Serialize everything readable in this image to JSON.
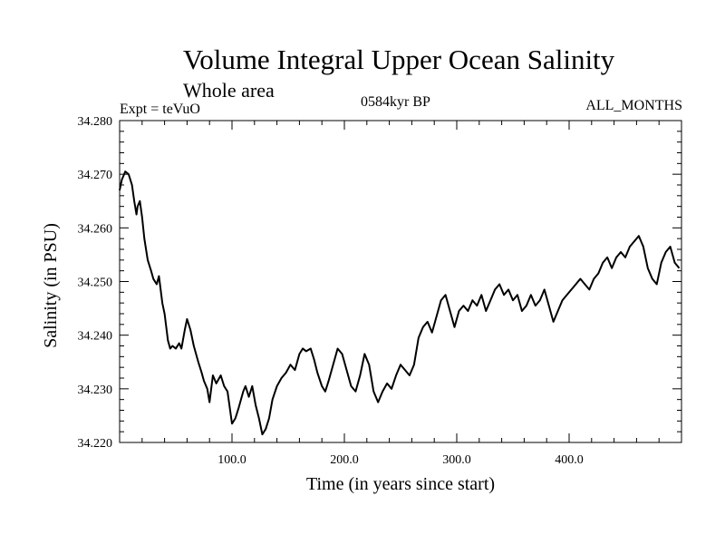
{
  "header": {
    "title": "Volume Integral Upper Ocean Salinity",
    "subtitle": "Whole area",
    "experiment": "Expt = teVuO",
    "period": "0584kyr BP",
    "months": "ALL_MONTHS"
  },
  "chart_data": {
    "type": "line",
    "xlabel": "Time (in years since start)",
    "ylabel": "Salinity (in PSU)",
    "xlim": [
      0,
      500
    ],
    "ylim": [
      34.22,
      34.28
    ],
    "x_ticks": [
      100,
      200,
      300,
      400
    ],
    "x_tick_labels": [
      "100.0",
      "200.0",
      "300.0",
      "400.0"
    ],
    "y_ticks": [
      34.22,
      34.23,
      34.24,
      34.25,
      34.26,
      34.27,
      34.28
    ],
    "y_tick_labels": [
      "34.220",
      "34.230",
      "34.240",
      "34.250",
      "34.260",
      "34.270",
      "34.280"
    ],
    "grid": false,
    "series": [
      {
        "color": "#000000",
        "x": [
          0,
          2,
          5,
          8,
          11,
          13,
          15,
          16,
          18,
          20,
          22,
          25,
          28,
          30,
          33,
          35,
          38,
          40,
          43,
          45,
          47,
          50,
          53,
          55,
          58,
          60,
          63,
          66,
          70,
          73,
          75,
          78,
          80,
          83,
          86,
          90,
          93,
          96,
          100,
          103,
          106,
          110,
          112,
          115,
          118,
          121,
          124,
          127,
          130,
          133,
          136,
          140,
          144,
          148,
          152,
          156,
          160,
          163,
          166,
          170,
          173,
          176,
          180,
          183,
          186,
          190,
          194,
          198,
          202,
          206,
          210,
          214,
          218,
          222,
          226,
          230,
          234,
          238,
          242,
          246,
          250,
          254,
          258,
          262,
          266,
          270,
          274,
          278,
          282,
          286,
          290,
          294,
          298,
          302,
          306,
          310,
          314,
          318,
          322,
          326,
          330,
          334,
          338,
          342,
          346,
          350,
          354,
          358,
          362,
          366,
          370,
          374,
          378,
          382,
          386,
          390,
          394,
          398,
          402,
          406,
          410,
          414,
          418,
          422,
          426,
          430,
          434,
          438,
          442,
          446,
          450,
          454,
          458,
          462,
          466,
          470,
          474,
          478,
          482,
          486,
          490,
          494,
          498
        ],
        "y": [
          34.267,
          34.269,
          34.2705,
          34.27,
          34.268,
          34.265,
          34.2625,
          34.264,
          34.265,
          34.262,
          34.258,
          34.254,
          34.252,
          34.2505,
          34.2495,
          34.251,
          34.246,
          34.244,
          34.239,
          34.2375,
          34.238,
          34.2375,
          34.2385,
          34.2375,
          34.241,
          34.243,
          34.241,
          34.238,
          34.235,
          34.233,
          34.2315,
          34.23,
          34.2275,
          34.2325,
          34.231,
          34.2325,
          34.2305,
          34.2295,
          34.2235,
          34.2245,
          34.2265,
          34.2295,
          34.2305,
          34.2285,
          34.2305,
          34.227,
          34.2245,
          34.2215,
          34.2225,
          34.2245,
          34.228,
          34.2305,
          34.232,
          34.233,
          34.2345,
          34.2335,
          34.2365,
          34.2375,
          34.237,
          34.2375,
          34.2355,
          34.233,
          34.2305,
          34.2295,
          34.2315,
          34.2345,
          34.2375,
          34.2365,
          34.2335,
          34.2305,
          34.2295,
          34.2325,
          34.2365,
          34.2345,
          34.2295,
          34.2275,
          34.2295,
          34.231,
          34.23,
          34.2325,
          34.2345,
          34.2335,
          34.2325,
          34.2345,
          34.2395,
          34.2415,
          34.2425,
          34.2405,
          34.2435,
          34.2465,
          34.2475,
          34.2445,
          34.2415,
          34.2445,
          34.2455,
          34.2445,
          34.2465,
          34.2455,
          34.2475,
          34.2445,
          34.2465,
          34.2485,
          34.2495,
          34.2475,
          34.2485,
          34.2465,
          34.2475,
          34.2445,
          34.2455,
          34.2475,
          34.2455,
          34.2465,
          34.2485,
          34.2455,
          34.2425,
          34.2445,
          34.2465,
          34.2475,
          34.2485,
          34.2495,
          34.2505,
          34.2495,
          34.2485,
          34.2505,
          34.2515,
          34.2535,
          34.2545,
          34.2525,
          34.2545,
          34.2555,
          34.2545,
          34.2565,
          34.2575,
          34.2585,
          34.2565,
          34.2525,
          34.2505,
          34.2495,
          34.2535,
          34.2555,
          34.2565,
          34.2535,
          34.2525
        ]
      }
    ]
  }
}
